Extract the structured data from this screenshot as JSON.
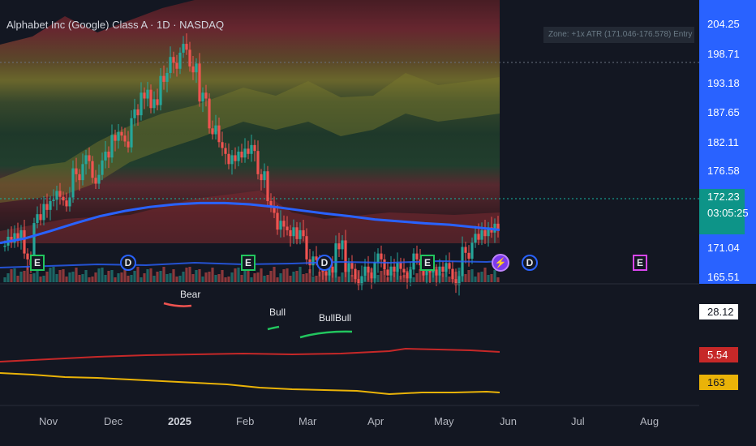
{
  "header": {
    "title": "Alphabet Inc (Google) Class A · 1D · NASDAQ"
  },
  "zone_label": "Zone: +1x ATR (171.046-176.578) Entry",
  "price_scale": {
    "ticks": [
      "204.25",
      "198.71",
      "193.18",
      "187.65",
      "182.11",
      "176.58",
      "171.04",
      "165.51"
    ],
    "current_price": "172.23",
    "countdown": "03:05:25"
  },
  "lower_labels": {
    "top_value": "28.12",
    "red_value": "5.54",
    "yellow_value": "163"
  },
  "patterns": [
    {
      "label": "Bear",
      "color": "#ef5350"
    },
    {
      "label": "Bull",
      "color": "#22c55e"
    },
    {
      "label": "BullBull",
      "color": "#22c55e"
    }
  ],
  "event_badges": [
    {
      "kind": "earnings",
      "glyph": "E"
    },
    {
      "kind": "dividend",
      "glyph": "D"
    },
    {
      "kind": "earnings",
      "glyph": "E"
    },
    {
      "kind": "dividend",
      "glyph": "D"
    },
    {
      "kind": "earnings",
      "glyph": "E"
    },
    {
      "kind": "flash",
      "glyph": "⚡"
    },
    {
      "kind": "dividend",
      "glyph": "D"
    },
    {
      "kind": "earnings-upcoming",
      "glyph": "E"
    }
  ],
  "x_axis": [
    "Nov",
    "Dec",
    "2025",
    "Feb",
    "Mar",
    "Apr",
    "May",
    "Jun",
    "Jul",
    "Aug"
  ],
  "colors": {
    "background": "#131722",
    "up": "#26a69a",
    "down": "#ef5350",
    "ma": "#2962ff",
    "price_scale_bg": "#2962ff",
    "current_price_bg": "#0d9488"
  },
  "chart_data": {
    "type": "candlestick",
    "ylim": [
      165.51,
      204.25
    ],
    "close_series": [
      171,
      172,
      168,
      174,
      176,
      178,
      177,
      181,
      183,
      180,
      184,
      187,
      186,
      190,
      193,
      192,
      196,
      198,
      200,
      197,
      193,
      188,
      185,
      183,
      184,
      185,
      181,
      176,
      173,
      172,
      172,
      168,
      167,
      166,
      170,
      167,
      165,
      166,
      168,
      166,
      167,
      166,
      168,
      166,
      166,
      167,
      165,
      169,
      171,
      172,
      173
    ],
    "ma_series": [
      170.5,
      171.2,
      172.3,
      173.5,
      174.6,
      175.4,
      176.0,
      176.4,
      176.6,
      176.6,
      176.4,
      176.0,
      175.5,
      175.0,
      174.6,
      174.1,
      173.8,
      173.5,
      173.3,
      172.9,
      172.5
    ]
  }
}
